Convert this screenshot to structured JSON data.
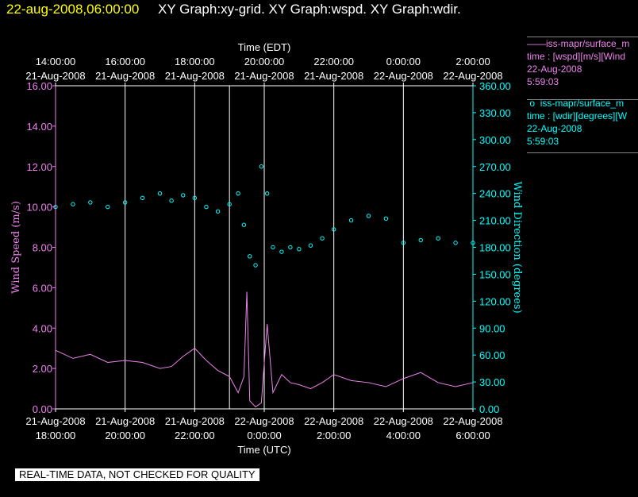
{
  "header": {
    "time": "22-aug-2008,06:00:00",
    "titles": "XY Graph:xy-grid.  XY Graph:wspd.  XY Graph:wdir."
  },
  "legend": [
    {
      "symbol": "——",
      "lines": [
        "iss-mapr/surface_m",
        "time : [wspd][m/s][Wind",
        "22-Aug-2008",
        "5:59:03"
      ],
      "color": "#ee82ee"
    },
    {
      "symbol": "o",
      "lines": [
        "iss-mapr/surface_m",
        "time : [wdir][degrees][W",
        "22-Aug-2008",
        "5:59:03"
      ],
      "color": "#00ffff"
    }
  ],
  "footer_note": "REAL-TIME DATA, NOT CHECKED FOR QUALITY",
  "chart_data": {
    "type": "line",
    "title": "",
    "xlabel_bottom": "Time (UTC)",
    "xlabel_top": "Time (EDT)",
    "ylabel_left": "Wind Speed (m/s)",
    "ylabel_right": "Wind Direction (degrees)",
    "x_ticks_bottom": [
      {
        "time": "18:00:00",
        "date": "21-Aug-2008"
      },
      {
        "time": "20:00:00",
        "date": "21-Aug-2008"
      },
      {
        "time": "22:00:00",
        "date": "21-Aug-2008"
      },
      {
        "time": "0:00:00",
        "date": "22-Aug-2008"
      },
      {
        "time": "2:00:00",
        "date": "22-Aug-2008"
      },
      {
        "time": "4:00:00",
        "date": "22-Aug-2008"
      },
      {
        "time": "6:00:00",
        "date": "22-Aug-2008"
      }
    ],
    "x_ticks_top": [
      {
        "time": "14:00:00",
        "date": "21-Aug-2008"
      },
      {
        "time": "16:00:00",
        "date": "21-Aug-2008"
      },
      {
        "time": "18:00:00",
        "date": "21-Aug-2008"
      },
      {
        "time": "20:00:00",
        "date": "21-Aug-2008"
      },
      {
        "time": "22:00:00",
        "date": "21-Aug-2008"
      },
      {
        "time": "0:00:00",
        "date": "22-Aug-2008"
      },
      {
        "time": "2:00:00",
        "date": "22-Aug-2008"
      }
    ],
    "x_range_utc": [
      "21-Aug-2008 18:00:00",
      "22-Aug-2008 06:00:00"
    ],
    "gridlines_utc": [
      "21-Aug-2008 20:00:00",
      "21-Aug-2008 22:00:00",
      "21-Aug-2008 23:00:00",
      "22-Aug-2008 00:00:00",
      "22-Aug-2008 02:00:00",
      "22-Aug-2008 04:00:00"
    ],
    "y_left": {
      "range": [
        0,
        16
      ],
      "ticks": [
        "0.00",
        "2.00",
        "4.00",
        "6.00",
        "8.00",
        "10.00",
        "12.00",
        "14.00",
        "16.00"
      ]
    },
    "y_right": {
      "range": [
        0,
        360
      ],
      "ticks": [
        "0.00",
        "30.00",
        "60.00",
        "90.00",
        "120.00",
        "150.00",
        "180.00",
        "210.00",
        "240.00",
        "270.00",
        "300.00",
        "330.00",
        "360.00"
      ]
    },
    "grid": true,
    "series": [
      {
        "name": "iss-mapr/surface_m time : [wspd][m/s]",
        "axis": "left",
        "style": "line",
        "x_utc": [
          "21-Aug-2008 18:00",
          "21-Aug-2008 18:30",
          "21-Aug-2008 19:00",
          "21-Aug-2008 19:30",
          "21-Aug-2008 20:00",
          "21-Aug-2008 20:30",
          "21-Aug-2008 21:00",
          "21-Aug-2008 21:20",
          "21-Aug-2008 21:40",
          "21-Aug-2008 22:00",
          "21-Aug-2008 22:20",
          "21-Aug-2008 22:40",
          "21-Aug-2008 23:00",
          "21-Aug-2008 23:15",
          "21-Aug-2008 23:25",
          "21-Aug-2008 23:30",
          "21-Aug-2008 23:35",
          "21-Aug-2008 23:45",
          "21-Aug-2008 23:55",
          "22-Aug-2008 00:05",
          "22-Aug-2008 00:15",
          "22-Aug-2008 00:30",
          "22-Aug-2008 00:45",
          "22-Aug-2008 01:00",
          "22-Aug-2008 01:20",
          "22-Aug-2008 01:40",
          "22-Aug-2008 02:00",
          "22-Aug-2008 02:30",
          "22-Aug-2008 03:00",
          "22-Aug-2008 03:30",
          "22-Aug-2008 04:00",
          "22-Aug-2008 04:30",
          "22-Aug-2008 05:00",
          "22-Aug-2008 05:30",
          "22-Aug-2008 06:00"
        ],
        "values": [
          2.9,
          2.5,
          2.7,
          2.3,
          2.4,
          2.3,
          2.0,
          2.1,
          2.6,
          3.0,
          2.4,
          1.9,
          1.6,
          0.8,
          1.6,
          5.8,
          0.4,
          0.1,
          0.3,
          4.2,
          0.8,
          1.7,
          1.3,
          1.2,
          1.0,
          1.3,
          1.7,
          1.4,
          1.3,
          1.1,
          1.5,
          1.8,
          1.3,
          1.1,
          1.3
        ]
      },
      {
        "name": "iss-mapr/surface_m time : [wdir][degrees]",
        "axis": "right",
        "style": "scatter",
        "x_utc": [
          "21-Aug-2008 18:00",
          "21-Aug-2008 18:30",
          "21-Aug-2008 19:00",
          "21-Aug-2008 19:30",
          "21-Aug-2008 20:00",
          "21-Aug-2008 20:30",
          "21-Aug-2008 21:00",
          "21-Aug-2008 21:20",
          "21-Aug-2008 21:40",
          "21-Aug-2008 22:00",
          "21-Aug-2008 22:20",
          "21-Aug-2008 22:40",
          "21-Aug-2008 23:00",
          "21-Aug-2008 23:15",
          "21-Aug-2008 23:25",
          "21-Aug-2008 23:35",
          "21-Aug-2008 23:45",
          "21-Aug-2008 23:55",
          "22-Aug-2008 00:05",
          "22-Aug-2008 00:15",
          "22-Aug-2008 00:30",
          "22-Aug-2008 00:45",
          "22-Aug-2008 01:00",
          "22-Aug-2008 01:20",
          "22-Aug-2008 01:40",
          "22-Aug-2008 02:00",
          "22-Aug-2008 02:30",
          "22-Aug-2008 03:00",
          "22-Aug-2008 03:30",
          "22-Aug-2008 04:00",
          "22-Aug-2008 04:30",
          "22-Aug-2008 05:00",
          "22-Aug-2008 05:30",
          "22-Aug-2008 06:00"
        ],
        "values": [
          225,
          228,
          230,
          225,
          230,
          235,
          240,
          232,
          238,
          235,
          225,
          220,
          228,
          240,
          205,
          170,
          160,
          270,
          240,
          180,
          175,
          180,
          178,
          182,
          190,
          200,
          210,
          215,
          212,
          185,
          188,
          190,
          185,
          185
        ]
      }
    ]
  }
}
